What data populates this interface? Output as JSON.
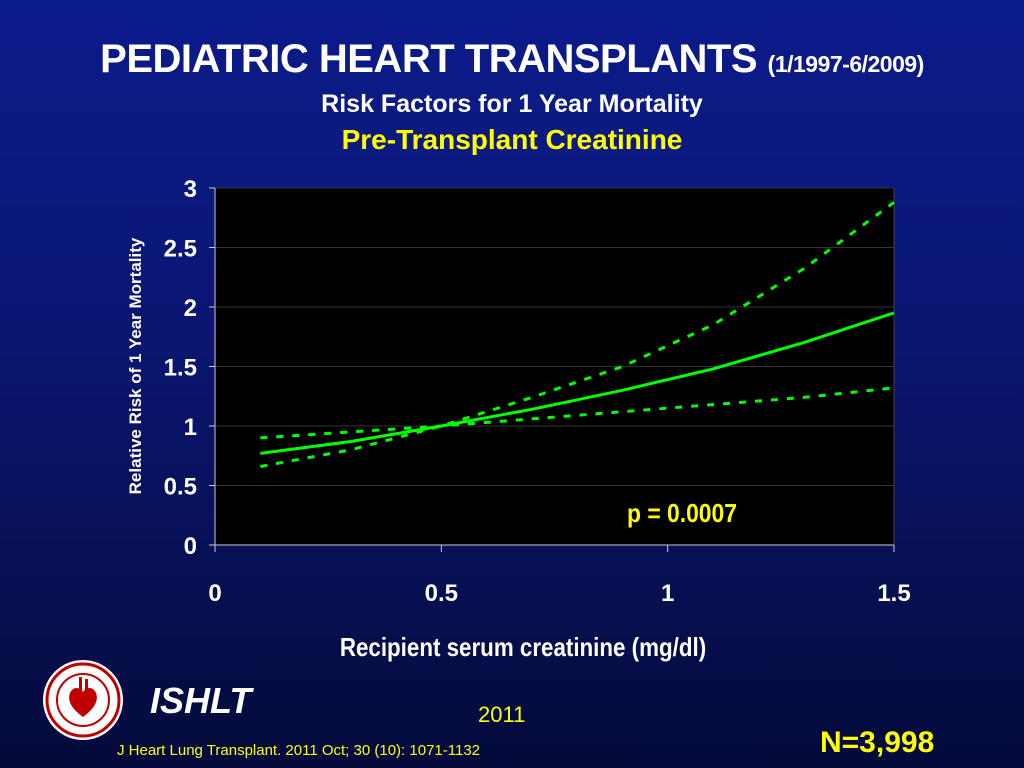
{
  "header": {
    "title": "PEDIATRIC HEART TRANSPLANTS",
    "title_dates": "(1/1997-6/2009)",
    "subtitle": "Risk Factors for 1 Year Mortality",
    "subtitle2": "Pre-Transplant Creatinine"
  },
  "footer": {
    "org": "ISHLT",
    "year": "2011",
    "citation": "J Heart Lung Transplant. 2011 Oct; 30 (10): 1071-1132",
    "n": "N=3,998"
  },
  "colors": {
    "background": "#0a1670",
    "plot_bg": "#000000",
    "line": "#00ff00",
    "accent": "#ffff00"
  },
  "chart_data": {
    "type": "line",
    "title": "Pre-Transplant Creatinine",
    "xlabel": "Recipient serum creatinine (mg/dl)",
    "ylabel": "Relative Risk of 1 Year Mortality",
    "xlim": [
      0,
      1.5
    ],
    "ylim": [
      0,
      3
    ],
    "xticks": [
      0,
      0.5,
      1,
      1.5
    ],
    "xtick_labels": [
      "0",
      "0.5",
      "1",
      "1.5"
    ],
    "yticks": [
      0,
      0.5,
      1,
      1.5,
      2,
      2.5,
      3
    ],
    "ytick_labels": [
      "0",
      "0.5",
      "1",
      "1.5",
      "2",
      "2.5",
      "3"
    ],
    "grid": true,
    "legend": "none",
    "annotation": "p = 0.0007",
    "series": [
      {
        "style": "solid",
        "x": [
          0.1,
          0.3,
          0.5,
          0.7,
          0.9,
          1.1,
          1.3,
          1.5
        ],
        "y": [
          0.77,
          0.87,
          1.0,
          1.14,
          1.3,
          1.48,
          1.7,
          1.95
        ]
      },
      {
        "style": "dotted",
        "x": [
          0.1,
          0.3,
          0.5,
          0.7,
          0.9,
          1.1,
          1.3,
          1.5
        ],
        "y": [
          0.66,
          0.8,
          1.0,
          1.24,
          1.5,
          1.85,
          2.32,
          2.88
        ]
      },
      {
        "style": "dotted",
        "x": [
          0.1,
          0.3,
          0.5,
          0.7,
          0.9,
          1.1,
          1.3,
          1.5
        ],
        "y": [
          0.9,
          0.95,
          1.0,
          1.06,
          1.12,
          1.18,
          1.24,
          1.32
        ]
      }
    ]
  }
}
